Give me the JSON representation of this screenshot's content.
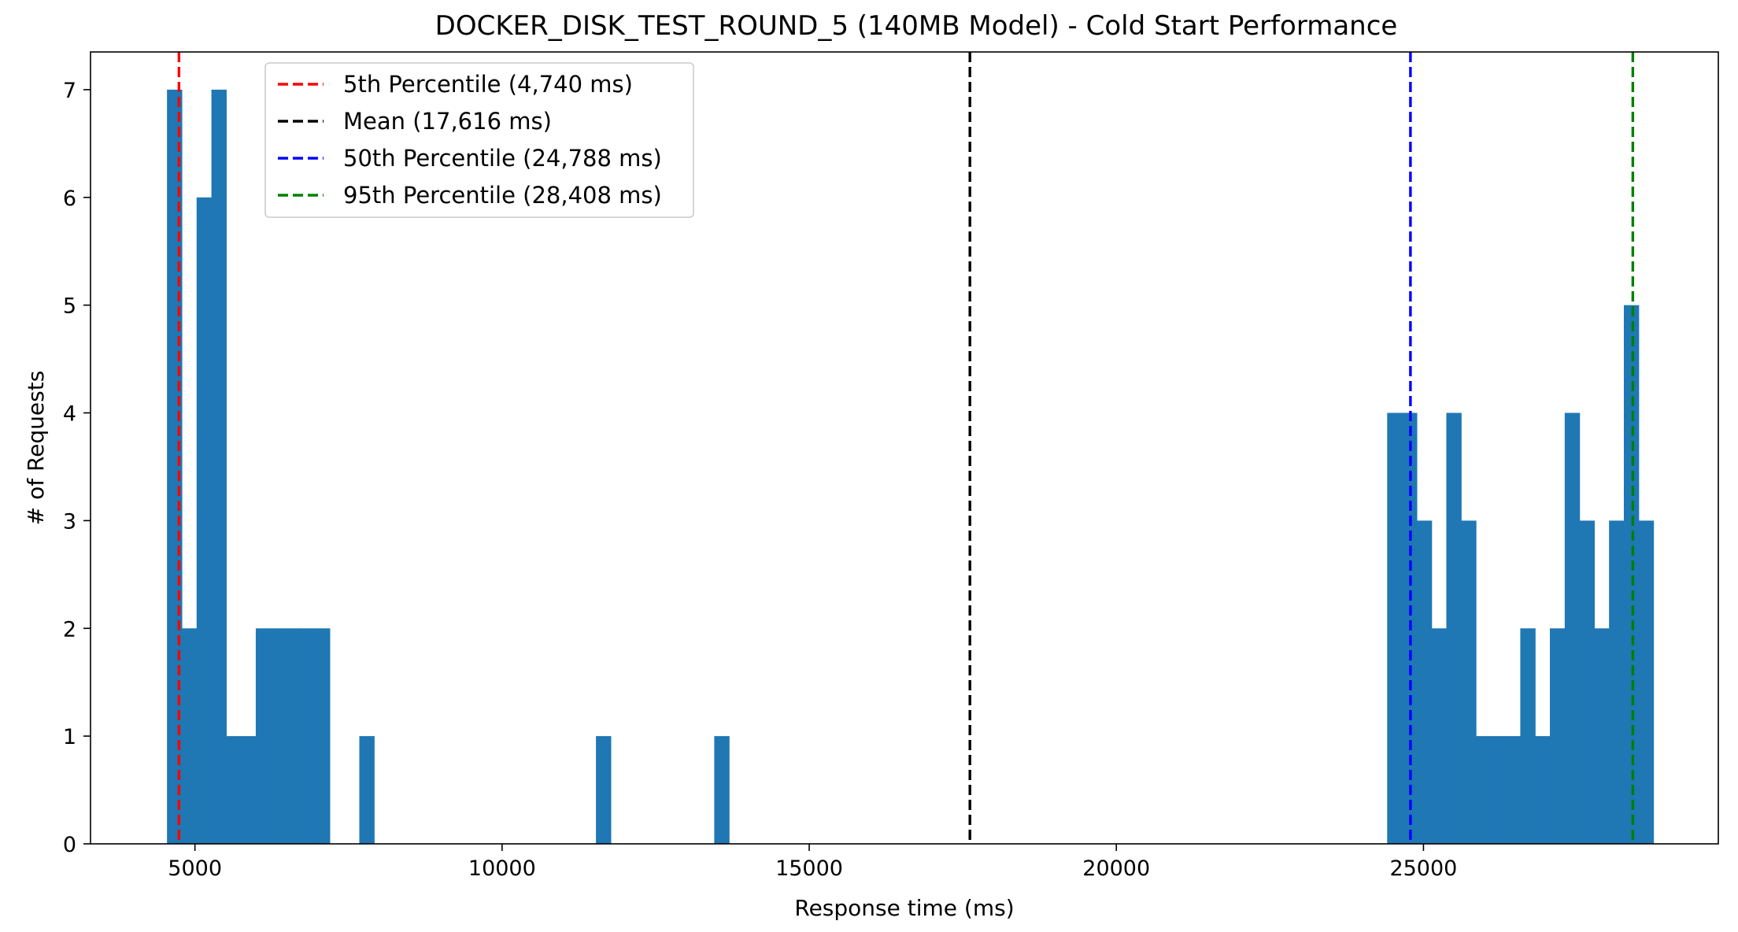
{
  "chart_data": {
    "type": "bar",
    "chart_kind": "histogram",
    "title": "DOCKER_DISK_TEST_ROUND_5 (140MB Model) - Cold Start Performance",
    "xlabel": "Response time (ms)",
    "ylabel": "# of Requests",
    "xlim": [
      3300,
      29800
    ],
    "ylim": [
      0,
      7.35
    ],
    "xticks": [
      5000,
      10000,
      15000,
      20000,
      25000
    ],
    "xtick_labels": [
      "5000",
      "10000",
      "15000",
      "20000",
      "25000"
    ],
    "yticks": [
      0,
      1,
      2,
      3,
      4,
      5,
      6,
      7
    ],
    "ytick_labels": [
      "0",
      "1",
      "2",
      "3",
      "4",
      "5",
      "6",
      "7"
    ],
    "bar_color": "#1f77b4",
    "bin_width": 240.8,
    "bins": [
      {
        "start": 4545,
        "count": 7
      },
      {
        "start": 4786,
        "count": 2
      },
      {
        "start": 5027,
        "count": 6
      },
      {
        "start": 5268,
        "count": 7
      },
      {
        "start": 5508,
        "count": 1
      },
      {
        "start": 5749,
        "count": 1
      },
      {
        "start": 5990,
        "count": 2
      },
      {
        "start": 6231,
        "count": 2
      },
      {
        "start": 6472,
        "count": 2
      },
      {
        "start": 6712,
        "count": 2
      },
      {
        "start": 6953,
        "count": 2
      },
      {
        "start": 7676,
        "count": 1
      },
      {
        "start": 11528,
        "count": 1
      },
      {
        "start": 13454,
        "count": 1
      },
      {
        "start": 24409,
        "count": 4
      },
      {
        "start": 24650,
        "count": 4
      },
      {
        "start": 24891,
        "count": 3
      },
      {
        "start": 25132,
        "count": 2
      },
      {
        "start": 25372,
        "count": 4
      },
      {
        "start": 25613,
        "count": 3
      },
      {
        "start": 25854,
        "count": 1
      },
      {
        "start": 26095,
        "count": 1
      },
      {
        "start": 26336,
        "count": 1
      },
      {
        "start": 26576,
        "count": 2
      },
      {
        "start": 26817,
        "count": 1
      },
      {
        "start": 27058,
        "count": 2
      },
      {
        "start": 27299,
        "count": 4
      },
      {
        "start": 27540,
        "count": 3
      },
      {
        "start": 27780,
        "count": 2
      },
      {
        "start": 28021,
        "count": 3
      },
      {
        "start": 28262,
        "count": 5
      },
      {
        "start": 28503,
        "count": 3
      }
    ],
    "vlines": [
      {
        "name": "5th Percentile (4,740 ms)",
        "x": 4740,
        "color": "#ff0000"
      },
      {
        "name": "Mean (17,616 ms)",
        "x": 17616,
        "color": "#000000"
      },
      {
        "name": "50th Percentile (24,788 ms)",
        "x": 24788,
        "color": "#0000ff"
      },
      {
        "name": "95th Percentile (28,408 ms)",
        "x": 28408,
        "color": "#008000"
      }
    ],
    "legend_position": "upper-left",
    "grid": false
  }
}
